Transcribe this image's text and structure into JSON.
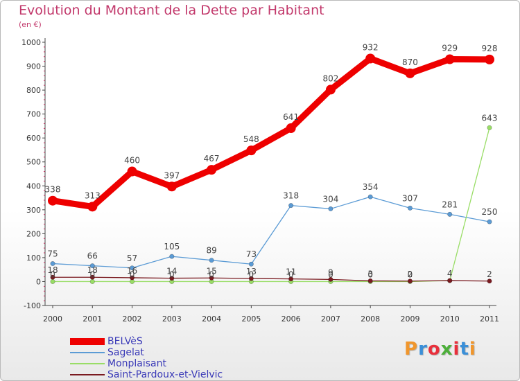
{
  "title": "Evolution du Montant de la Dette par Habitant",
  "subtitle": "(en €)",
  "logo": {
    "text": "Proxiti",
    "colors": [
      "#f0962c",
      "#3a8fd8",
      "#e8303c",
      "#4caf3a",
      "#e8303c",
      "#3a8fd8",
      "#f0962c"
    ]
  },
  "chart_data": {
    "type": "line",
    "x": [
      "2000",
      "2001",
      "2002",
      "2003",
      "2004",
      "2005",
      "2006",
      "2007",
      "2008",
      "2009",
      "2010",
      "2011"
    ],
    "ylim": [
      -100,
      1000
    ],
    "yticks": [
      "-100",
      "0",
      "100",
      "200",
      "300",
      "400",
      "500",
      "600",
      "700",
      "800",
      "900",
      "1000"
    ],
    "grid": false,
    "legend_position": "bottom-left",
    "series": [
      {
        "name": "BELVèS",
        "color": "#ee0000",
        "values": [
          338,
          313,
          460,
          397,
          467,
          548,
          641,
          802,
          932,
          870,
          929,
          928
        ],
        "labels": [
          "338",
          "313",
          "460",
          "397",
          "467",
          "548",
          "641",
          "802",
          "932",
          "870",
          "929",
          "928"
        ]
      },
      {
        "name": "Sagelat",
        "color": "#5b9bd5",
        "values": [
          75,
          66,
          57,
          105,
          89,
          73,
          318,
          304,
          354,
          307,
          281,
          250
        ],
        "labels": [
          "75",
          "66",
          "57",
          "105",
          "89",
          "73",
          "318",
          "304",
          "354",
          "307",
          "281",
          "250"
        ]
      },
      {
        "name": "Monplaisant",
        "color": "#99dd66",
        "values": [
          0,
          0,
          0,
          0,
          0,
          0,
          0,
          0,
          0,
          0,
          4,
          643
        ],
        "labels": [
          "0",
          "0",
          "0",
          "0",
          "0",
          "0",
          "0",
          "0",
          "0",
          "0",
          "",
          "643"
        ]
      },
      {
        "name": "Saint-Pardoux-et-Vielvic",
        "color": "#7a1a20",
        "values": [
          18,
          18,
          16,
          14,
          15,
          13,
          11,
          9,
          3,
          2,
          4,
          2
        ],
        "labels": [
          "18",
          "18",
          "16",
          "14",
          "15",
          "13",
          "11",
          "9",
          "3",
          "2",
          "4",
          "2"
        ]
      }
    ]
  }
}
